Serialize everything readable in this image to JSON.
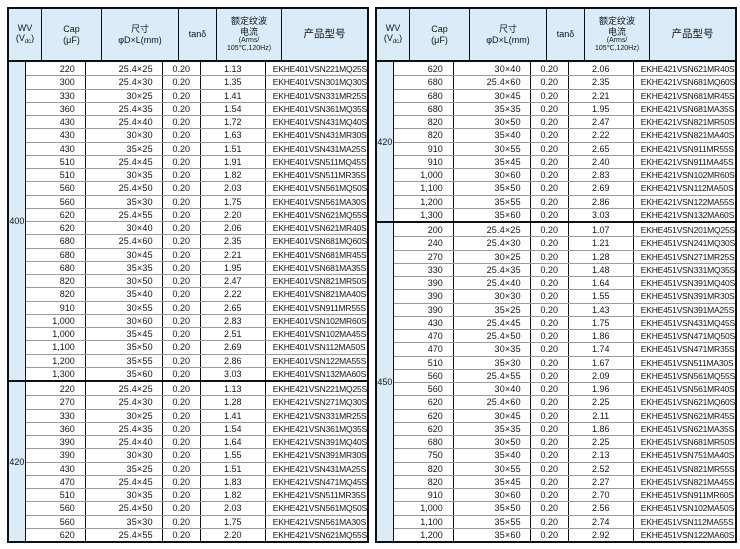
{
  "colors": {
    "header_bg": "#d9ecf7",
    "wv_column_bg": "#d9ecf7",
    "outer_border": "#101010",
    "row_line": "#9b9b9b",
    "text": "#141414"
  },
  "header": {
    "wv_line1": "WV",
    "wv_line2_pre": "(V",
    "wv_sub": "dc",
    "wv_line2_post": ")",
    "cap_line1": "Cap",
    "cap_line2": "(μF)",
    "size_line1": "尺寸",
    "size_line2": "φD×L(mm)",
    "tan": "tanδ",
    "ripple_line1": "额定纹波",
    "ripple_line2": "电流",
    "ripple_line3": "(Arms/",
    "ripple_line4": "105℃,120Hz)",
    "model": "产品型号"
  },
  "columns": [
    "WV (Vdc)",
    "Cap (μF)",
    "尺寸 φD×L(mm)",
    "tanδ",
    "额定纹波电流 (Arms/105℃,120Hz)",
    "产品型号"
  ],
  "tables": [
    {
      "groups": [
        {
          "wv": "400",
          "rows": [
            [
              "220",
              "25.4×25",
              "0.20",
              "1.13",
              "EKHE401VSN221MQ25S"
            ],
            [
              "300",
              "25.4×30",
              "0.20",
              "1.35",
              "EKHE401VSN301MQ30S"
            ],
            [
              "330",
              "30×25",
              "0.20",
              "1.41",
              "EKHE401VSN331MR25S"
            ],
            [
              "360",
              "25.4×35",
              "0.20",
              "1.54",
              "EKHE401VSN361MQ35S"
            ],
            [
              "430",
              "25.4×40",
              "0.20",
              "1.72",
              "EKHE401VSN431MQ40S"
            ],
            [
              "430",
              "30×30",
              "0.20",
              "1.63",
              "EKHE401VSN431MR30S"
            ],
            [
              "430",
              "35×25",
              "0.20",
              "1.51",
              "EKHE401VSN431MA25S"
            ],
            [
              "510",
              "25.4×45",
              "0.20",
              "1.91",
              "EKHE401VSN511MQ45S"
            ],
            [
              "510",
              "30×35",
              "0.20",
              "1.82",
              "EKHE401VSN511MR35S"
            ],
            [
              "560",
              "25.4×50",
              "0.20",
              "2.03",
              "EKHE401VSN561MQ50S"
            ],
            [
              "560",
              "35×30",
              "0.20",
              "1.75",
              "EKHE401VSN561MA30S"
            ],
            [
              "620",
              "25.4×55",
              "0.20",
              "2.20",
              "EKHE401VSN621MQ55S"
            ],
            [
              "620",
              "30×40",
              "0.20",
              "2.06",
              "EKHE401VSN621MR40S"
            ],
            [
              "680",
              "25.4×60",
              "0.20",
              "2.35",
              "EKHE401VSN681MQ60S"
            ],
            [
              "680",
              "30×45",
              "0.20",
              "2.21",
              "EKHE401VSN681MR45S"
            ],
            [
              "680",
              "35×35",
              "0.20",
              "1.95",
              "EKHE401VSN681MA35S"
            ],
            [
              "820",
              "30×50",
              "0.20",
              "2.47",
              "EKHE401VSN821MR50S"
            ],
            [
              "820",
              "35×40",
              "0.20",
              "2.22",
              "EKHE401VSN821MA40S"
            ],
            [
              "910",
              "30×55",
              "0.20",
              "2.65",
              "EKHE401VSN911MR55S"
            ],
            [
              "1,000",
              "30×60",
              "0.20",
              "2.83",
              "EKHE401VSN102MR60S"
            ],
            [
              "1,000",
              "35×45",
              "0.20",
              "2.51",
              "EKHE401VSN102MA45S"
            ],
            [
              "1,100",
              "35×50",
              "0.20",
              "2.69",
              "EKHE401VSN112MA50S"
            ],
            [
              "1,200",
              "35×55",
              "0.20",
              "2.86",
              "EKHE401VSN122MA55S"
            ],
            [
              "1,300",
              "35×60",
              "0.20",
              "3.03",
              "EKHE401VSN132MA60S"
            ]
          ]
        },
        {
          "wv": "420",
          "rows": [
            [
              "220",
              "25.4×25",
              "0.20",
              "1.13",
              "EKHE421VSN221MQ25S"
            ],
            [
              "270",
              "25.4×30",
              "0.20",
              "1.28",
              "EKHE421VSN271MQ30S"
            ],
            [
              "330",
              "30×25",
              "0.20",
              "1.41",
              "EKHE421VSN331MR25S"
            ],
            [
              "360",
              "25.4×35",
              "0.20",
              "1.54",
              "EKHE421VSN361MQ35S"
            ],
            [
              "390",
              "25.4×40",
              "0.20",
              "1.64",
              "EKHE421VSN391MQ40S"
            ],
            [
              "390",
              "30×30",
              "0.20",
              "1.55",
              "EKHE421VSN391MR30S"
            ],
            [
              "430",
              "35×25",
              "0.20",
              "1.51",
              "EKHE421VSN431MA25S"
            ],
            [
              "470",
              "25.4×45",
              "0.20",
              "1.83",
              "EKHE421VSN471MQ45S"
            ],
            [
              "510",
              "30×35",
              "0.20",
              "1.82",
              "EKHE421VSN511MR35S"
            ],
            [
              "560",
              "25.4×50",
              "0.20",
              "2.03",
              "EKHE421VSN561MQ50S"
            ],
            [
              "560",
              "35×30",
              "0.20",
              "1.75",
              "EKHE421VSN561MA30S"
            ],
            [
              "620",
              "25.4×55",
              "0.20",
              "2.20",
              "EKHE421VSN621MQ55S"
            ]
          ]
        }
      ]
    },
    {
      "groups": [
        {
          "wv": "420",
          "rows": [
            [
              "620",
              "30×40",
              "0.20",
              "2.06",
              "EKHE421VSN621MR40S"
            ],
            [
              "680",
              "25.4×60",
              "0.20",
              "2.35",
              "EKHE421VSN681MQ60S"
            ],
            [
              "680",
              "30×45",
              "0.20",
              "2.21",
              "EKHE421VSN681MR45S"
            ],
            [
              "680",
              "35×35",
              "0.20",
              "1.95",
              "EKHE421VSN681MA35S"
            ],
            [
              "820",
              "30×50",
              "0.20",
              "2.47",
              "EKHE421VSN821MR50S"
            ],
            [
              "820",
              "35×40",
              "0.20",
              "2.22",
              "EKHE421VSN821MA40S"
            ],
            [
              "910",
              "30×55",
              "0.20",
              "2.65",
              "EKHE421VSN911MR55S"
            ],
            [
              "910",
              "35×45",
              "0.20",
              "2.40",
              "EKHE421VSN911MA45S"
            ],
            [
              "1,000",
              "30×60",
              "0.20",
              "2.83",
              "EKHE421VSN102MR60S"
            ],
            [
              "1,100",
              "35×50",
              "0.20",
              "2.69",
              "EKHE421VSN112MA50S"
            ],
            [
              "1,200",
              "35×55",
              "0.20",
              "2.86",
              "EKHE421VSN122MA55S"
            ],
            [
              "1,300",
              "35×60",
              "0.20",
              "3.03",
              "EKHE421VSN132MA60S"
            ]
          ]
        },
        {
          "wv": "450",
          "rows": [
            [
              "200",
              "25.4×25",
              "0.20",
              "1.07",
              "EKHE451VSN201MQ25S"
            ],
            [
              "240",
              "25.4×30",
              "0.20",
              "1.21",
              "EKHE451VSN241MQ30S"
            ],
            [
              "270",
              "30×25",
              "0.20",
              "1.28",
              "EKHE451VSN271MR25S"
            ],
            [
              "330",
              "25.4×35",
              "0.20",
              "1.48",
              "EKHE451VSN331MQ35S"
            ],
            [
              "390",
              "25.4×40",
              "0.20",
              "1.64",
              "EKHE451VSN391MQ40S"
            ],
            [
              "390",
              "30×30",
              "0.20",
              "1.55",
              "EKHE451VSN391MR30S"
            ],
            [
              "390",
              "35×25",
              "0.20",
              "1.43",
              "EKHE451VSN391MA25S"
            ],
            [
              "430",
              "25.4×45",
              "0.20",
              "1.75",
              "EKHE451VSN431MQ45S"
            ],
            [
              "470",
              "25.4×50",
              "0.20",
              "1.86",
              "EKHE451VSN471MQ50S"
            ],
            [
              "470",
              "30×35",
              "0.20",
              "1.74",
              "EKHE451VSN471MR35S"
            ],
            [
              "510",
              "35×30",
              "0.20",
              "1.67",
              "EKHE451VSN511MA30S"
            ],
            [
              "560",
              "25.4×55",
              "0.20",
              "2.09",
              "EKHE451VSN561MQ55S"
            ],
            [
              "560",
              "30×40",
              "0.20",
              "1.96",
              "EKHE451VSN561MR40S"
            ],
            [
              "620",
              "25.4×60",
              "0.20",
              "2.25",
              "EKHE451VSN621MQ60S"
            ],
            [
              "620",
              "30×45",
              "0.20",
              "2.11",
              "EKHE451VSN621MR45S"
            ],
            [
              "620",
              "35×35",
              "0.20",
              "1.86",
              "EKHE451VSN621MA35S"
            ],
            [
              "680",
              "30×50",
              "0.20",
              "2.25",
              "EKHE451VSN681MR50S"
            ],
            [
              "750",
              "35×40",
              "0.20",
              "2.13",
              "EKHE451VSN751MA40S"
            ],
            [
              "820",
              "30×55",
              "0.20",
              "2.52",
              "EKHE451VSN821MR55S"
            ],
            [
              "820",
              "35×45",
              "0.20",
              "2.27",
              "EKHE451VSN821MA45S"
            ],
            [
              "910",
              "30×60",
              "0.20",
              "2.70",
              "EKHE451VSN911MR60S"
            ],
            [
              "1,000",
              "35×50",
              "0.20",
              "2.56",
              "EKHE451VSN102MA50S"
            ],
            [
              "1,100",
              "35×55",
              "0.20",
              "2.74",
              "EKHE451VSN112MA55S"
            ],
            [
              "1,200",
              "35×60",
              "0.20",
              "2.92",
              "EKHE451VSN122MA60S"
            ]
          ]
        }
      ]
    }
  ]
}
